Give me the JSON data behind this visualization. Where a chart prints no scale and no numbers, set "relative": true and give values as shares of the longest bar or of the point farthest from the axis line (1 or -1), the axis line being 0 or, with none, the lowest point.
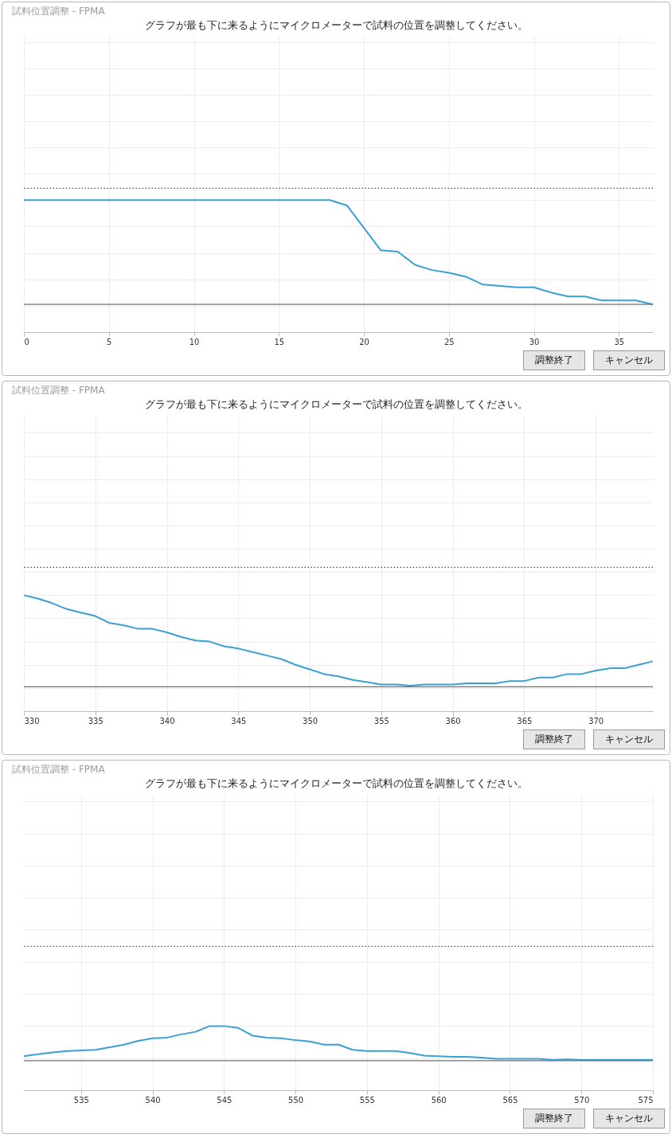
{
  "chart_data": [
    {
      "type": "line",
      "title": "試料位置調整 - FPMA",
      "subtitle": "グラフが最も下に来るようにマイクロメーターで試料の位置を調整してください。",
      "relative": true,
      "x": [
        0,
        1,
        2,
        3,
        4,
        5,
        6,
        7,
        8,
        9,
        10,
        11,
        12,
        13,
        14,
        15,
        16,
        17,
        18,
        19,
        20,
        21,
        22,
        23,
        24,
        25,
        26,
        27,
        28,
        29,
        30,
        31,
        32,
        33,
        34,
        35,
        36,
        37
      ],
      "xlim": [
        0,
        37
      ],
      "xticks": [
        0,
        5,
        10,
        15,
        20,
        25,
        30,
        35
      ],
      "grid": true,
      "line_style": "solid",
      "series": [
        {
          "color": "#3a9fd2",
          "values": [
            1,
            1,
            1,
            1,
            1,
            1,
            1,
            1,
            1,
            1,
            1,
            1,
            1,
            1,
            1,
            1,
            1,
            1,
            1,
            0.96,
            0.79,
            0.62,
            0.61,
            0.51,
            0.47,
            0.45,
            0.42,
            0.36,
            0.35,
            0.34,
            0.34,
            0.3,
            0.27,
            0.27,
            0.24,
            0.24,
            0.24,
            0.21
          ]
        }
      ],
      "ref_lines": [
        {
          "axis": "y",
          "value": 0.21,
          "color": "#707070",
          "line_style": "solid"
        },
        {
          "axis": "y",
          "value": 1.09,
          "color": "#505050",
          "line_style": "dotted"
        }
      ],
      "annotations": [
        "調整終了",
        "キャンセル"
      ]
    },
    {
      "type": "line",
      "title": "試料位置調整 - FPMA",
      "subtitle": "グラフが最も下に来るようにマイクロメーターで試料の位置を調整してください。",
      "relative": true,
      "x": [
        330,
        331,
        332,
        333,
        334,
        335,
        336,
        337,
        338,
        339,
        340,
        341,
        342,
        343,
        344,
        345,
        346,
        347,
        348,
        349,
        350,
        351,
        352,
        353,
        354,
        355,
        356,
        357,
        358,
        359,
        360,
        361,
        362,
        363,
        364,
        365,
        366,
        367,
        368,
        369,
        370,
        371,
        372,
        373,
        374
      ],
      "xlim": [
        330,
        374
      ],
      "xticks": [
        330,
        335,
        340,
        345,
        350,
        355,
        360,
        365,
        370
      ],
      "grid": true,
      "line_style": "solid",
      "series": [
        {
          "color": "#3a9fd2",
          "values": [
            1,
            0.97,
            0.93,
            0.88,
            0.85,
            0.82,
            0.76,
            0.74,
            0.71,
            0.71,
            0.68,
            0.64,
            0.61,
            0.6,
            0.56,
            0.54,
            0.51,
            0.48,
            0.45,
            0.4,
            0.36,
            0.32,
            0.3,
            0.27,
            0.25,
            0.23,
            0.23,
            0.22,
            0.23,
            0.23,
            0.23,
            0.24,
            0.24,
            0.24,
            0.26,
            0.26,
            0.29,
            0.29,
            0.32,
            0.32,
            0.35,
            0.37,
            0.37,
            0.4,
            0.43
          ]
        }
      ],
      "ref_lines": [
        {
          "axis": "y",
          "value": 0.21,
          "color": "#707070",
          "line_style": "solid"
        },
        {
          "axis": "y",
          "value": 1.24,
          "color": "#505050",
          "line_style": "dotted"
        }
      ],
      "annotations": [
        "調整終了",
        "キャンセル"
      ]
    },
    {
      "type": "line",
      "title": "試料位置調整 - FPMA",
      "subtitle": "グラフが最も下に来るようにマイクロメーターで試料の位置を調整してください。",
      "relative": true,
      "x": [
        531,
        532,
        533,
        534,
        535,
        536,
        537,
        538,
        539,
        540,
        541,
        542,
        543,
        544,
        545,
        546,
        547,
        548,
        549,
        550,
        551,
        552,
        553,
        554,
        555,
        556,
        557,
        558,
        559,
        560,
        561,
        562,
        563,
        564,
        565,
        566,
        567,
        568,
        569,
        570,
        571,
        572,
        573,
        574,
        575
      ],
      "xlim": [
        531,
        575
      ],
      "xticks": [
        535,
        540,
        545,
        550,
        555,
        560,
        565,
        570,
        575
      ],
      "grid": true,
      "line_style": "solid",
      "series": [
        {
          "color": "#3a9fd2",
          "values": [
            0.53,
            0.56,
            0.59,
            0.61,
            0.62,
            0.63,
            0.67,
            0.71,
            0.77,
            0.81,
            0.82,
            0.87,
            0.91,
            1,
            1,
            0.97,
            0.85,
            0.82,
            0.81,
            0.78,
            0.76,
            0.71,
            0.71,
            0.63,
            0.61,
            0.61,
            0.61,
            0.58,
            0.54,
            0.53,
            0.52,
            0.52,
            0.51,
            0.49,
            0.49,
            0.49,
            0.49,
            0.47,
            0.48,
            0.47,
            0.47,
            0.47,
            0.47,
            0.47,
            0.47
          ]
        }
      ],
      "ref_lines": [
        {
          "axis": "y",
          "value": 0.46,
          "color": "#707070",
          "line_style": "solid"
        },
        {
          "axis": "y",
          "value": 2.24,
          "color": "#505050",
          "line_style": "dotted"
        }
      ],
      "annotations": [
        "調整終了",
        "キャンセル"
      ]
    }
  ]
}
